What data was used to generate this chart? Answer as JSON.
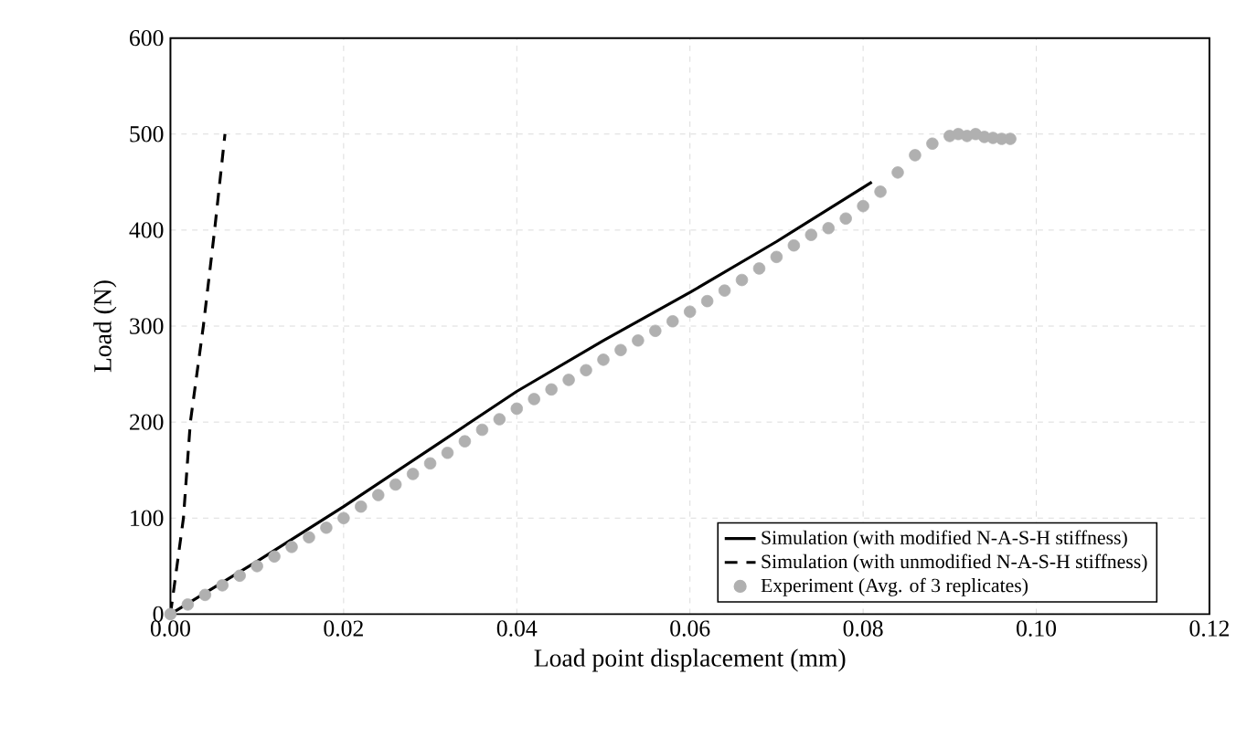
{
  "chart_data": {
    "type": "line",
    "xlabel": "Load point displacement (mm)",
    "ylabel": "Load (N)",
    "xlim": [
      0,
      0.12
    ],
    "ylim": [
      0,
      600
    ],
    "xticks": [
      {
        "value": 0,
        "label": "0.00"
      },
      {
        "value": 0.02,
        "label": "0.02"
      },
      {
        "value": 0.04,
        "label": "0.04"
      },
      {
        "value": 0.06,
        "label": "0.06"
      },
      {
        "value": 0.08,
        "label": "0.08"
      },
      {
        "value": 0.1,
        "label": "0.10"
      },
      {
        "value": 0.12,
        "label": "0.12"
      }
    ],
    "yticks": [
      0,
      100,
      200,
      300,
      400,
      500,
      600
    ],
    "grid": true,
    "legend": "bottom right",
    "series": [
      {
        "name": "Simulation (with modified N-A-S-H stiffness)",
        "type": "line",
        "color": "#000000",
        "line_style": "solid",
        "x": [
          0,
          0.01,
          0.02,
          0.03,
          0.04,
          0.05,
          0.06,
          0.07,
          0.081
        ],
        "values": [
          0,
          55,
          112,
          172,
          232,
          285,
          335,
          388,
          450
        ]
      },
      {
        "name": "Simulation (with unmodified N-A-S-H stiffness)",
        "type": "line",
        "color": "#000000",
        "line_style": "dashed",
        "x": [
          0,
          0.0015,
          0.0023,
          0.0038,
          0.0051,
          0.0063
        ],
        "values": [
          0,
          100,
          200,
          300,
          400,
          500
        ]
      },
      {
        "name": "Experiment (Avg. of 3 replicates)",
        "type": "scatter",
        "color": "#b0b0b0",
        "marker": "circle",
        "x": [
          0,
          0.002,
          0.004,
          0.006,
          0.008,
          0.01,
          0.012,
          0.014,
          0.016,
          0.018,
          0.02,
          0.022,
          0.024,
          0.026,
          0.028,
          0.03,
          0.032,
          0.034,
          0.036,
          0.038,
          0.04,
          0.042,
          0.044,
          0.046,
          0.048,
          0.05,
          0.052,
          0.054,
          0.056,
          0.058,
          0.06,
          0.062,
          0.064,
          0.066,
          0.068,
          0.07,
          0.072,
          0.074,
          0.076,
          0.078,
          0.08,
          0.082,
          0.084,
          0.086,
          0.088,
          0.09,
          0.091,
          0.092,
          0.093,
          0.094,
          0.095,
          0.096,
          0.097
        ],
        "values": [
          0,
          10,
          20,
          30,
          40,
          50,
          60,
          70,
          80,
          90,
          100,
          112,
          124,
          135,
          146,
          157,
          168,
          180,
          192,
          203,
          214,
          224,
          234,
          244,
          254,
          265,
          275,
          285,
          295,
          305,
          315,
          326,
          337,
          348,
          360,
          372,
          384,
          395,
          402,
          412,
          425,
          440,
          460,
          478,
          490,
          498,
          500,
          498,
          500,
          497,
          496,
          495,
          495
        ]
      }
    ]
  }
}
